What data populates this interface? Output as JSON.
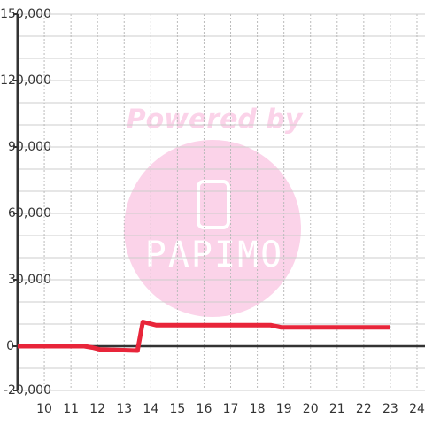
{
  "chart_data": {
    "type": "line",
    "x": [
      9,
      11.5,
      11.8,
      12.1,
      13.5,
      13.7,
      14.2,
      18.5,
      18.9,
      23
    ],
    "values": [
      0,
      0,
      -600,
      -1500,
      -2000,
      11000,
      9500,
      9500,
      8500,
      8500
    ],
    "color": "#e8253a",
    "xlim": [
      9,
      24.3
    ],
    "xticks": [
      10,
      11,
      12,
      13,
      14,
      15,
      16,
      17,
      18,
      19,
      20,
      21,
      22,
      23,
      24
    ],
    "ylim": [
      -20000,
      150000
    ],
    "yticks": [
      {
        "value": -20000,
        "label": "-20,000"
      },
      0,
      {
        "value": 30000,
        "label": "30,000"
      },
      {
        "value": 60000,
        "label": "60,000"
      },
      {
        "value": 90000,
        "label": "90,000"
      },
      {
        "value": 120000,
        "label": "120,000"
      },
      {
        "value": 150000,
        "label": "150,000"
      }
    ],
    "minor_yticks": [
      -10000,
      10000,
      20000,
      40000,
      50000,
      70000,
      80000,
      100000,
      110000,
      130000,
      140000
    ],
    "grid": true,
    "annotations": [
      "Powered by",
      "PAPIMO"
    ]
  }
}
